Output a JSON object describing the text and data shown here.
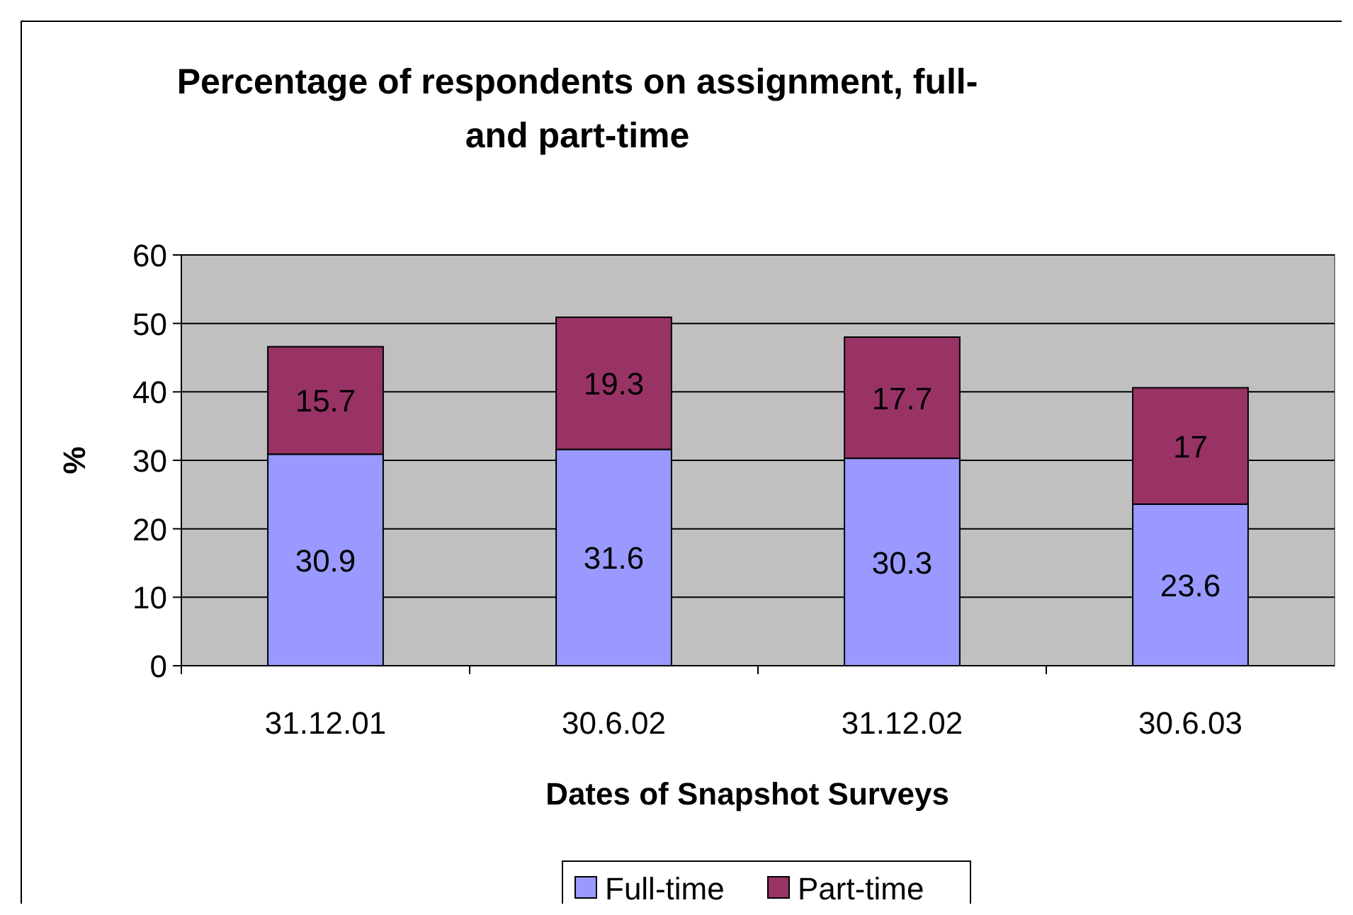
{
  "chart_data": {
    "type": "bar",
    "title": "Percentage of respondents on assignment, full- and part-time",
    "xlabel": "Dates of Snapshot Surveys",
    "ylabel": "%",
    "categories": [
      "31.12.01",
      "30.6.02",
      "31.12.02",
      "30.6.03"
    ],
    "series": [
      {
        "name": "Full-time",
        "color": "#9999ff",
        "values": [
          30.9,
          31.6,
          30.3,
          23.6
        ]
      },
      {
        "name": "Part-time",
        "color": "#993366",
        "values": [
          15.7,
          19.3,
          17.7,
          17
        ]
      }
    ],
    "stacked": true,
    "ylim": [
      0,
      60
    ],
    "yticks": [
      0,
      10,
      20,
      30,
      40,
      50,
      60
    ],
    "grid": "y",
    "data_labels": true,
    "legend": "bottom"
  }
}
